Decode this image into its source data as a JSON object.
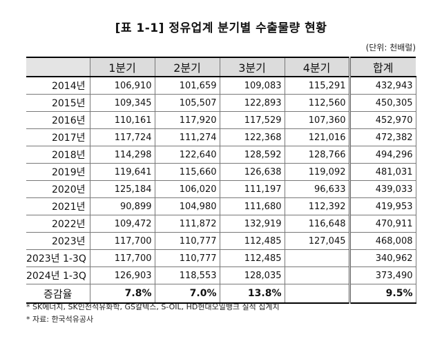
{
  "title": "[표 1-1] 정유업계 분기별 수출물량 현황",
  "unit": "(단위: 천배럴)",
  "headers": [
    "",
    "1분기",
    "2분기",
    "3분기",
    "4분기",
    "합계"
  ],
  "rows": [
    {
      "label": "2014년",
      "q1": "106,910",
      "q2": "101,659",
      "q3": "109,083",
      "q4": "115,291",
      "total": "432,943"
    },
    {
      "label": "2015년",
      "q1": "109,345",
      "q2": "105,507",
      "q3": "122,893",
      "q4": "112,560",
      "total": "450,305"
    },
    {
      "label": "2016년",
      "q1": "110,161",
      "q2": "117,920",
      "q3": "117,529",
      "q4": "107,360",
      "total": "452,970"
    },
    {
      "label": "2017년",
      "q1": "117,724",
      "q2": "111,274",
      "q3": "122,368",
      "q4": "121,016",
      "total": "472,382"
    },
    {
      "label": "2018년",
      "q1": "114,298",
      "q2": "122,640",
      "q3": "128,592",
      "q4": "128,766",
      "total": "494,296"
    },
    {
      "label": "2019년",
      "q1": "119,641",
      "q2": "115,660",
      "q3": "126,638",
      "q4": "119,092",
      "total": "481,031"
    },
    {
      "label": "2020년",
      "q1": "125,184",
      "q2": "106,020",
      "q3": "111,197",
      "q4": "96,633",
      "total": "439,033"
    },
    {
      "label": "2021년",
      "q1": "90,899",
      "q2": "104,980",
      "q3": "111,680",
      "q4": "112,392",
      "total": "419,953"
    },
    {
      "label": "2022년",
      "q1": "109,472",
      "q2": "111,872",
      "q3": "132,919",
      "q4": "116,648",
      "total": "470,911"
    },
    {
      "label": "2023년",
      "q1": "117,700",
      "q2": "110,777",
      "q3": "112,485",
      "q4": "127,045",
      "total": "468,008"
    },
    {
      "label": "2023년 1-3Q",
      "q1": "117,700",
      "q2": "110,777",
      "q3": "112,485",
      "q4": "",
      "total": "340,962"
    },
    {
      "label": "2024년 1-3Q",
      "q1": "126,903",
      "q2": "118,553",
      "q3": "128,035",
      "q4": "",
      "total": "373,490"
    }
  ],
  "growth": {
    "label": "증감율",
    "q1": "7.8%",
    "q2": "7.0%",
    "q3": "13.8%",
    "q4": "",
    "total": "9.5%"
  },
  "notes": [
    "* SK에너지, SK인천석유화학, GS칼텍스, S-OIL, HD현대오일뱅크 실적 집계치",
    "* 자료: 한국석유공사"
  ]
}
